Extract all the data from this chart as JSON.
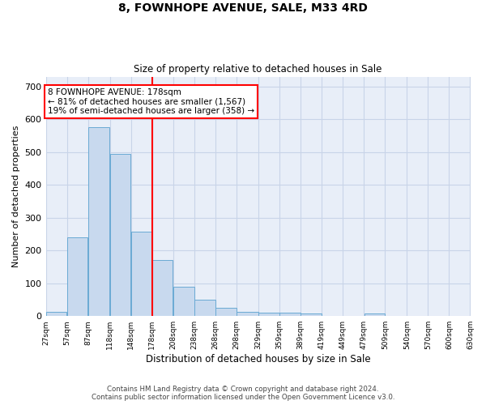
{
  "title": "8, FOWNHOPE AVENUE, SALE, M33 4RD",
  "subtitle": "Size of property relative to detached houses in Sale",
  "xlabel": "Distribution of detached houses by size in Sale",
  "ylabel": "Number of detached properties",
  "bar_color": "#c8d9ee",
  "bar_edge_color": "#6aaad4",
  "grid_color": "#c8d4e8",
  "background_color": "#e8eef8",
  "vline_x": 178,
  "vline_color": "red",
  "annotation_line1": "8 FOWNHOPE AVENUE: 178sqm",
  "annotation_line2": "← 81% of detached houses are smaller (1,567)",
  "annotation_line3": "19% of semi-detached houses are larger (358) →",
  "footer_text": "Contains HM Land Registry data © Crown copyright and database right 2024.\nContains public sector information licensed under the Open Government Licence v3.0.",
  "bin_edges": [
    27,
    57,
    87,
    118,
    148,
    178,
    208,
    238,
    268,
    298,
    329,
    359,
    389,
    419,
    449,
    479,
    509,
    540,
    570,
    600,
    630
  ],
  "bar_heights": [
    13,
    240,
    575,
    495,
    258,
    170,
    90,
    50,
    25,
    13,
    10,
    10,
    8,
    0,
    0,
    8,
    0,
    0,
    0,
    0
  ],
  "ylim": [
    0,
    730
  ],
  "xlim": [
    27,
    630
  ],
  "yticks": [
    0,
    100,
    200,
    300,
    400,
    500,
    600,
    700
  ]
}
